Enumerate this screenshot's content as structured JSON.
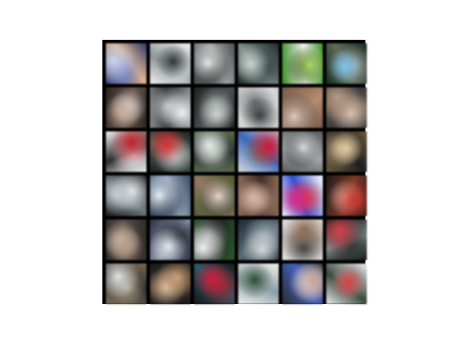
{
  "figure": {
    "background_color": "#ffffff",
    "grid_border_color": "#000000"
  },
  "grid": {
    "rows": 6,
    "cols": 6,
    "tiles": [
      {
        "row": 0,
        "col": 0,
        "palette": [
          "#2a3a6b",
          "#c9d4ef",
          "#e6b58a",
          "#6f82c4"
        ]
      },
      {
        "row": 0,
        "col": 1,
        "palette": [
          "#f2f2f2",
          "#2f3538",
          "#8e969a",
          "#cfd3d5"
        ]
      },
      {
        "row": 0,
        "col": 2,
        "palette": [
          "#4c4f52",
          "#e7e7e7",
          "#a9acae",
          "#2a2a2a"
        ]
      },
      {
        "row": 0,
        "col": 3,
        "palette": [
          "#1f2b2b",
          "#c9d2cf",
          "#7f8f8a",
          "#3b4a48"
        ]
      },
      {
        "row": 0,
        "col": 4,
        "palette": [
          "#3f8f2a",
          "#a7d86b",
          "#f0f0f0",
          "#2d3a1f"
        ]
      },
      {
        "row": 0,
        "col": 5,
        "palette": [
          "#1b2c22",
          "#7ec2ea",
          "#5e6b59",
          "#9fa8a5"
        ]
      },
      {
        "row": 1,
        "col": 0,
        "palette": [
          "#2a2320",
          "#c8b09f",
          "#6a5b52",
          "#d9d2cf"
        ]
      },
      {
        "row": 1,
        "col": 1,
        "palette": [
          "#8a8d90",
          "#f0f0f0",
          "#2f3236",
          "#b9bcc0"
        ]
      },
      {
        "row": 1,
        "col": 2,
        "palette": [
          "#1f2422",
          "#cfd3d2",
          "#4a5150",
          "#8d9592"
        ]
      },
      {
        "row": 1,
        "col": 3,
        "palette": [
          "#c9c9c9",
          "#3a3d40",
          "#e8e8e8",
          "#707579"
        ]
      },
      {
        "row": 1,
        "col": 4,
        "palette": [
          "#7a5a4a",
          "#e5c7b5",
          "#b48c73",
          "#2b2b2b"
        ]
      },
      {
        "row": 1,
        "col": 5,
        "palette": [
          "#3a3a3a",
          "#b69b86",
          "#6f5c4e",
          "#dbc6b5"
        ]
      },
      {
        "row": 2,
        "col": 0,
        "palette": [
          "#f3f3f3",
          "#c0212a",
          "#2c2c2c",
          "#e7e7e7"
        ]
      },
      {
        "row": 2,
        "col": 1,
        "palette": [
          "#1c1f22",
          "#d12f2f",
          "#5a6a5d",
          "#cbd3d6"
        ]
      },
      {
        "row": 2,
        "col": 2,
        "palette": [
          "#5c6d52",
          "#e5e8e8",
          "#2d3638",
          "#a8b0a8"
        ]
      },
      {
        "row": 2,
        "col": 3,
        "palette": [
          "#d7d9dd",
          "#c5193a",
          "#3b66b6",
          "#6b7d64"
        ]
      },
      {
        "row": 2,
        "col": 4,
        "palette": [
          "#5b5d5f",
          "#d8dadd",
          "#a3a6a9",
          "#2c2d2f"
        ]
      },
      {
        "row": 2,
        "col": 5,
        "palette": [
          "#6b5a3d",
          "#e0c9a5",
          "#1f1f1f",
          "#b59d7a"
        ]
      },
      {
        "row": 3,
        "col": 0,
        "palette": [
          "#1a1c1e",
          "#c7cdd3",
          "#6f7880",
          "#e8ebee"
        ]
      },
      {
        "row": 3,
        "col": 1,
        "palette": [
          "#3a4a66",
          "#e5edf5",
          "#9aaabf",
          "#1e2b3b"
        ]
      },
      {
        "row": 3,
        "col": 2,
        "palette": [
          "#4f5b32",
          "#e4d2cc",
          "#8f7a66",
          "#2f3a22"
        ]
      },
      {
        "row": 3,
        "col": 3,
        "palette": [
          "#8a6a5a",
          "#d8b7a6",
          "#3e2e28",
          "#b79383"
        ]
      },
      {
        "row": 3,
        "col": 4,
        "palette": [
          "#ffffff",
          "#d12a87",
          "#2f4fd1",
          "#e23a3a"
        ]
      },
      {
        "row": 3,
        "col": 5,
        "palette": [
          "#1f1a18",
          "#c3352f",
          "#7a3a2b",
          "#e0b0a0"
        ]
      },
      {
        "row": 4,
        "col": 0,
        "palette": [
          "#2e2b28",
          "#b59f8c",
          "#5e524a",
          "#d5c3b2"
        ]
      },
      {
        "row": 4,
        "col": 1,
        "palette": [
          "#2c3242",
          "#e6e9ee",
          "#8a93ab",
          "#13161d"
        ]
      },
      {
        "row": 4,
        "col": 2,
        "palette": [
          "#2a5a2f",
          "#f0f0f0",
          "#1d1d1d",
          "#9c9c9c"
        ]
      },
      {
        "row": 4,
        "col": 3,
        "palette": [
          "#1e2a33",
          "#d2d7da",
          "#5b6a74",
          "#9eaab1"
        ]
      },
      {
        "row": 4,
        "col": 4,
        "palette": [
          "#e8e8e8",
          "#8a6a52",
          "#b9b2ad",
          "#3c3c3c"
        ]
      },
      {
        "row": 4,
        "col": 5,
        "palette": [
          "#0f1314",
          "#d33e4a",
          "#7f8a86",
          "#2b3633"
        ]
      },
      {
        "row": 5,
        "col": 0,
        "palette": [
          "#7a6c55",
          "#e3e3e3",
          "#2f2f2f",
          "#a9a08e"
        ]
      },
      {
        "row": 5,
        "col": 1,
        "palette": [
          "#1b1b1b",
          "#c8a07a",
          "#3c2f25",
          "#e2c4a4"
        ]
      },
      {
        "row": 5,
        "col": 2,
        "palette": [
          "#161617",
          "#c81f3a",
          "#2d5b6b",
          "#8c2a36"
        ]
      },
      {
        "row": 5,
        "col": 3,
        "palette": [
          "#f1f1f1",
          "#2c4a33",
          "#8a9ea5",
          "#c9d1d3"
        ]
      },
      {
        "row": 5,
        "col": 4,
        "palette": [
          "#2c2c2c",
          "#c7a59b",
          "#3f5fb8",
          "#f0e6e2"
        ]
      },
      {
        "row": 5,
        "col": 5,
        "palette": [
          "#e9ecef",
          "#d23d3d",
          "#3a4b3b",
          "#9ea6aa"
        ]
      }
    ]
  }
}
